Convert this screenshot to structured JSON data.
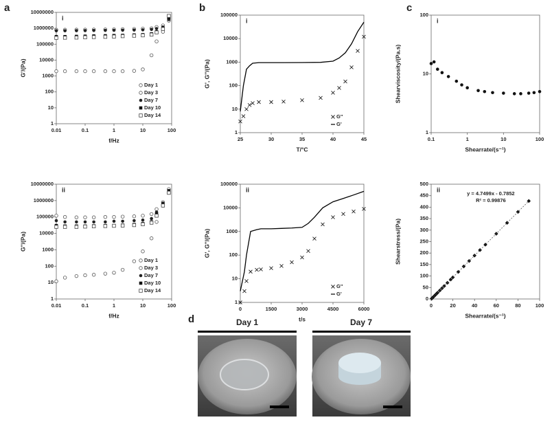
{
  "panel_labels": [
    "a",
    "b",
    "c",
    "d"
  ],
  "chart_data": [
    {
      "type": "scatter",
      "label": "i",
      "xlabel": "f/Hz",
      "ylabel": "G'/(Pa)",
      "xscale": "log",
      "yscale": "log",
      "xlim": [
        0.01,
        100
      ],
      "ylim": [
        1,
        10000000
      ],
      "xticks": [
        0.01,
        0.1,
        1,
        10,
        100
      ],
      "yticks": [
        1,
        10,
        100,
        1000,
        10000,
        100000,
        1000000,
        10000000
      ],
      "legend": "lower right",
      "x": [
        0.01,
        0.02,
        0.05,
        0.1,
        0.2,
        0.5,
        1,
        2,
        5,
        10,
        20,
        30,
        50,
        80
      ],
      "series": [
        {
          "name": "Day 1",
          "color": "#555555",
          "marker": "circle-open",
          "values": [
            2000,
            2000,
            2000,
            2000,
            2000,
            2000,
            2000,
            2000,
            2100,
            2600,
            20000,
            150000,
            600000,
            3000000
          ]
        },
        {
          "name": "Day 3",
          "color": "#555555",
          "marker": "circle-open",
          "values": [
            800000,
            810000,
            820000,
            830000,
            840000,
            850000,
            860000,
            880000,
            900000,
            950000,
            1000000,
            1200000,
            1500000,
            4000000
          ]
        },
        {
          "name": "Day 7",
          "color": "#222222",
          "marker": "circle",
          "values": [
            700000,
            700000,
            710000,
            720000,
            730000,
            740000,
            750000,
            760000,
            780000,
            800000,
            850000,
            950000,
            1200000,
            3500000
          ]
        },
        {
          "name": "Day 10",
          "color": "#111111",
          "marker": "square",
          "values": [
            300000,
            300000,
            310000,
            320000,
            330000,
            340000,
            350000,
            360000,
            380000,
            400000,
            450000,
            600000,
            1000000,
            5000000
          ]
        },
        {
          "name": "Day 14",
          "color": "#444444",
          "marker": "square-open",
          "values": [
            250000,
            255000,
            260000,
            270000,
            280000,
            290000,
            300000,
            320000,
            340000,
            360000,
            400000,
            550000,
            900000,
            6000000
          ]
        }
      ]
    },
    {
      "type": "scatter",
      "label": "ii",
      "xlabel": "f/Hz",
      "ylabel": "G''/(Pa)",
      "xscale": "log",
      "yscale": "log",
      "xlim": [
        0.01,
        100
      ],
      "ylim": [
        1,
        10000000
      ],
      "xticks": [
        0.01,
        0.1,
        1,
        10,
        100
      ],
      "yticks": [
        1,
        10,
        100,
        1000,
        10000,
        100000,
        1000000,
        10000000
      ],
      "legend": "lower right",
      "x": [
        0.01,
        0.02,
        0.05,
        0.1,
        0.2,
        0.5,
        1,
        2,
        5,
        10,
        20,
        30,
        50,
        80
      ],
      "series": [
        {
          "name": "Day 1",
          "color": "#555555",
          "marker": "circle-open",
          "values": [
            12,
            20,
            25,
            28,
            30,
            35,
            40,
            60,
            200,
            800,
            5000,
            50000,
            500000,
            3000000
          ]
        },
        {
          "name": "Day 3",
          "color": "#555555",
          "marker": "circle-open",
          "values": [
            120000,
            100000,
            95000,
            95000,
            95000,
            100000,
            100000,
            105000,
            110000,
            120000,
            150000,
            300000,
            800000,
            5000000
          ]
        },
        {
          "name": "Day 7",
          "color": "#222222",
          "marker": "circle",
          "values": [
            60000,
            50000,
            50000,
            50000,
            50000,
            50000,
            55000,
            55000,
            60000,
            65000,
            80000,
            200000,
            700000,
            4000000
          ]
        },
        {
          "name": "Day 10",
          "color": "#111111",
          "marker": "square",
          "values": [
            30000,
            28000,
            28000,
            28000,
            29000,
            30000,
            30000,
            32000,
            35000,
            40000,
            50000,
            150000,
            600000,
            4000000
          ]
        },
        {
          "name": "Day 14",
          "color": "#444444",
          "marker": "square-open",
          "values": [
            25000,
            25000,
            25000,
            26000,
            27000,
            28000,
            29000,
            30000,
            32000,
            36000,
            45000,
            120000,
            500000,
            3000000
          ]
        }
      ]
    },
    {
      "type": "scatter",
      "label": "i",
      "xlabel": "T/°C",
      "ylabel": "G', G''/(Pa)",
      "xscale": "linear",
      "yscale": "log",
      "xlim": [
        25,
        45
      ],
      "ylim": [
        1,
        100000
      ],
      "xticks": [
        25,
        30,
        35,
        40,
        45
      ],
      "yticks": [
        1,
        10,
        100,
        1000,
        10000,
        100000
      ],
      "legend": "lower right",
      "x": [
        25,
        25.5,
        26,
        26.5,
        27,
        28,
        30,
        32,
        35,
        38,
        40,
        41,
        42,
        43,
        44,
        45
      ],
      "series": [
        {
          "name": "G''",
          "color": "#222222",
          "marker": "x",
          "values": [
            3,
            5,
            10,
            15,
            18,
            20,
            20,
            21,
            24,
            30,
            50,
            80,
            150,
            600,
            3000,
            12000
          ]
        },
        {
          "name": "G'",
          "color": "#000000",
          "marker": "line",
          "values": [
            8,
            100,
            500,
            700,
            900,
            950,
            950,
            950,
            960,
            980,
            1100,
            1500,
            2500,
            6000,
            20000,
            50000
          ]
        }
      ]
    },
    {
      "type": "scatter",
      "label": "ii",
      "xlabel": "t/s",
      "ylabel": "G', G''/(Pa)",
      "xscale": "linear",
      "yscale": "log",
      "xlim": [
        0,
        6000
      ],
      "ylim": [
        1,
        100000
      ],
      "xticks": [
        0,
        1500,
        3000,
        4500,
        6000
      ],
      "yticks": [
        1,
        10,
        100,
        1000,
        10000,
        100000
      ],
      "legend": "lower right",
      "x": [
        0,
        200,
        300,
        500,
        800,
        1000,
        1500,
        2000,
        2500,
        3000,
        3300,
        3600,
        4000,
        4500,
        5000,
        5500,
        6000
      ],
      "series": [
        {
          "name": "G''",
          "color": "#222222",
          "marker": "x",
          "values": [
            1,
            3,
            8,
            20,
            24,
            25,
            28,
            35,
            50,
            80,
            150,
            500,
            2000,
            4000,
            5500,
            7000,
            9000
          ]
        },
        {
          "name": "G'",
          "color": "#000000",
          "marker": "line",
          "values": [
            3,
            20,
            100,
            1000,
            1200,
            1300,
            1300,
            1350,
            1400,
            1500,
            2200,
            4000,
            10000,
            18000,
            25000,
            35000,
            50000
          ]
        }
      ]
    },
    {
      "type": "scatter",
      "label": "i",
      "xlabel": "Shearrate/(s⁻¹)",
      "ylabel": "Shearviscosity/(Pa.s)",
      "xscale": "log",
      "yscale": "log",
      "xlim": [
        0.1,
        100
      ],
      "ylim": [
        1,
        100
      ],
      "xticks": [
        0.1,
        1,
        10,
        100
      ],
      "yticks": [
        1,
        10,
        100
      ],
      "x": [
        0.1,
        0.12,
        0.15,
        0.2,
        0.3,
        0.5,
        0.7,
        1,
        2,
        3,
        5,
        10,
        20,
        30,
        50,
        70,
        100
      ],
      "series": [
        {
          "color": "#111111",
          "marker": "circle",
          "values": [
            15,
            16,
            12,
            10.5,
            9,
            7.5,
            6.5,
            5.8,
            5.2,
            5,
            4.8,
            4.7,
            4.6,
            4.6,
            4.7,
            4.8,
            5
          ]
        }
      ]
    },
    {
      "type": "scatter",
      "label": "ii",
      "xlabel": "Shearrate/(s⁻¹)",
      "ylabel": "Shearstress/(Pa)",
      "xscale": "linear",
      "yscale": "linear",
      "xlim": [
        0,
        100
      ],
      "ylim": [
        0,
        500
      ],
      "xticks": [
        0,
        20,
        40,
        60,
        80,
        100
      ],
      "yticks": [
        0,
        50,
        100,
        150,
        200,
        250,
        300,
        350,
        400,
        450,
        500
      ],
      "trendline": true,
      "annotations": [
        "y = 4.7499x - 0.7852",
        "R² = 0.99876"
      ],
      "x": [
        0.5,
        1,
        2,
        3,
        4,
        5,
        6,
        8,
        10,
        12,
        15,
        18,
        20,
        25,
        30,
        35,
        40,
        45,
        50,
        60,
        70,
        80,
        90
      ],
      "series": [
        {
          "color": "#111111",
          "marker": "diamond",
          "values": [
            1.6,
            4,
            8.7,
            13.5,
            18.2,
            23,
            27.7,
            37.2,
            46.7,
            56.2,
            70.5,
            84.7,
            94.2,
            118,
            141.7,
            165.5,
            189.2,
            213,
            236.7,
            284.2,
            331.7,
            379.2,
            426.7
          ]
        }
      ]
    }
  ],
  "photos": [
    {
      "label": "Day 1"
    },
    {
      "label": "Day 7"
    }
  ]
}
